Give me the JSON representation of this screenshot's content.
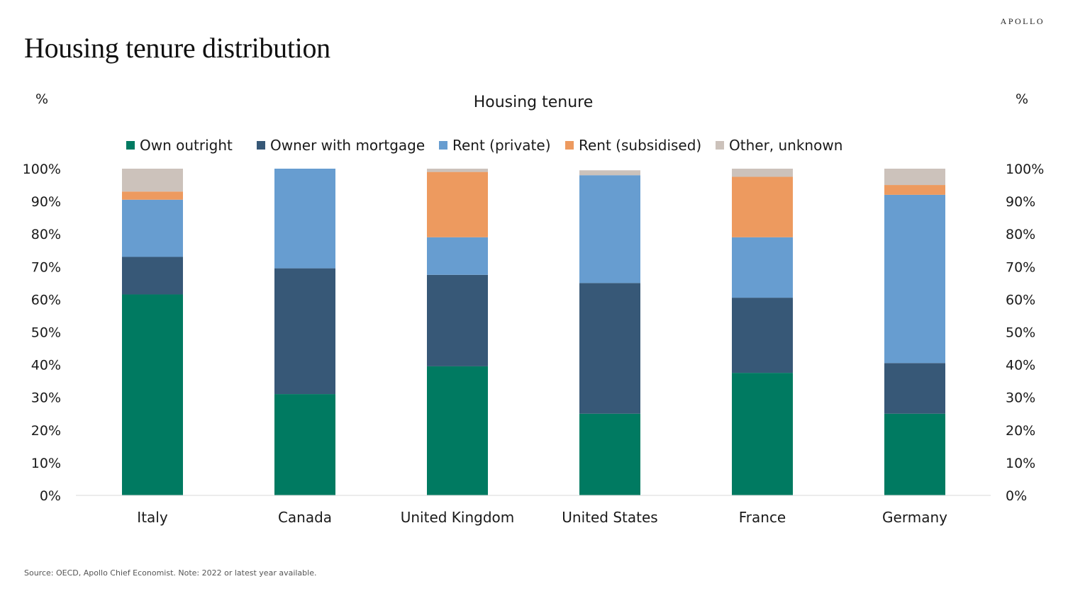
{
  "header": {
    "brand": "APOLLO",
    "title": "Housing tenure distribution"
  },
  "footer": {
    "source": "Source: OECD, Apollo Chief Economist. Note: 2022 or latest year available."
  },
  "chart_data": {
    "type": "bar",
    "stacked": true,
    "title": "Housing tenure",
    "ylabel_left": "%",
    "ylabel_right": "%",
    "categories": [
      "Italy",
      "Canada",
      "United Kingdom",
      "United States",
      "France",
      "Germany"
    ],
    "y_ticks": [
      "0%",
      "10%",
      "20%",
      "30%",
      "40%",
      "50%",
      "60%",
      "70%",
      "80%",
      "90%",
      "100%"
    ],
    "ylim": [
      0,
      100
    ],
    "legend_position": "top",
    "grid": false,
    "series": [
      {
        "name": "Own outright",
        "color": "#007a61",
        "values": [
          61.5,
          31,
          39.5,
          25,
          37.5,
          25
        ]
      },
      {
        "name": "Owner with mortgage",
        "color": "#375877",
        "values": [
          11.5,
          38.5,
          28,
          40,
          23,
          15.5
        ]
      },
      {
        "name": "Rent (private)",
        "color": "#679dd0",
        "values": [
          17.5,
          30.5,
          11.5,
          33,
          18.5,
          51.5
        ]
      },
      {
        "name": "Rent (subsidised)",
        "color": "#ed9a5f",
        "values": [
          2.5,
          0,
          20,
          0,
          18.5,
          3
        ]
      },
      {
        "name": "Other, unknown",
        "color": "#ccc2bb",
        "values": [
          7,
          0,
          1,
          1.5,
          2.5,
          5
        ]
      }
    ]
  }
}
